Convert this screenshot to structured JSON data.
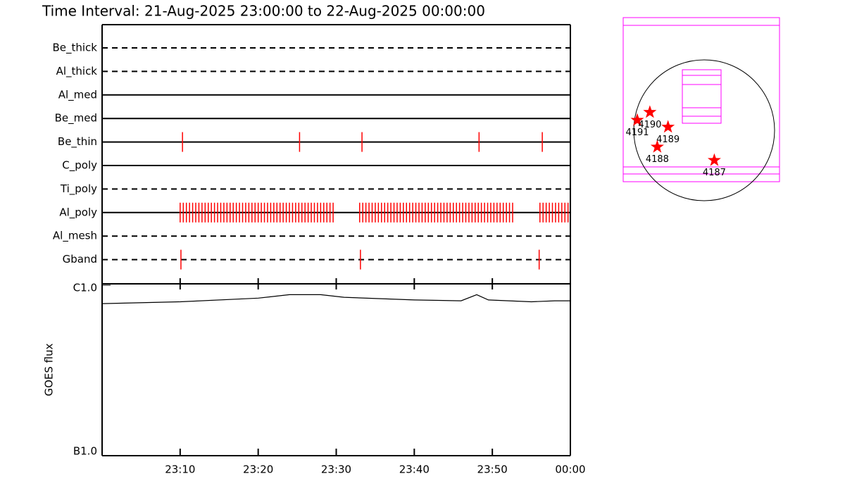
{
  "chart_data": [
    {
      "type": "timeline",
      "title": "Time Interval: 21-Aug-2025 23:00:00 to 22-Aug-2025 00:00:00",
      "xlim": [
        0,
        60
      ],
      "series": [
        {
          "name": "Be_thick",
          "dashed": true,
          "color": "#ff0000",
          "x": []
        },
        {
          "name": "Al_thick",
          "dashed": true,
          "color": "#ff0000",
          "x": []
        },
        {
          "name": "Al_med",
          "dashed": false,
          "color": "#ff0000",
          "x": []
        },
        {
          "name": "Be_med",
          "dashed": false,
          "color": "#ff0000",
          "x": []
        },
        {
          "name": "Be_thin",
          "dashed": false,
          "color": "#ff0000",
          "x": [
            10.3,
            25.3,
            33.3,
            48.3,
            56.4
          ]
        },
        {
          "name": "C_poly",
          "dashed": false,
          "color": "#ff0000",
          "x": []
        },
        {
          "name": "Ti_poly",
          "dashed": true,
          "color": "#ff0000",
          "x": []
        },
        {
          "name": "Al_poly",
          "dashed": false,
          "color": "#ff0000",
          "x": [
            10.0,
            10.4,
            10.8,
            11.2,
            11.6,
            12.0,
            12.4,
            12.8,
            13.2,
            13.6,
            14.0,
            14.4,
            14.8,
            15.2,
            15.6,
            16.0,
            16.4,
            16.8,
            17.2,
            17.6,
            18.0,
            18.4,
            18.8,
            19.2,
            19.6,
            20.0,
            20.4,
            20.8,
            21.2,
            21.6,
            22.0,
            22.4,
            22.8,
            23.2,
            23.6,
            24.0,
            24.4,
            24.8,
            25.2,
            25.6,
            26.0,
            26.4,
            26.8,
            27.2,
            27.6,
            28.0,
            28.4,
            28.8,
            29.2,
            29.6,
            33.0,
            33.4,
            33.8,
            34.2,
            34.6,
            35.0,
            35.4,
            35.8,
            36.2,
            36.6,
            37.0,
            37.4,
            37.8,
            38.2,
            38.6,
            39.0,
            39.4,
            39.8,
            40.2,
            40.6,
            41.0,
            41.4,
            41.8,
            42.2,
            42.6,
            43.0,
            43.4,
            43.8,
            44.2,
            44.6,
            45.0,
            45.4,
            45.8,
            46.2,
            46.6,
            47.0,
            47.4,
            47.8,
            48.2,
            48.6,
            49.0,
            49.4,
            49.8,
            50.2,
            50.6,
            51.0,
            51.4,
            51.8,
            52.2,
            52.6,
            56.1,
            56.5,
            56.9,
            57.3,
            57.7,
            58.1,
            58.5,
            58.9,
            59.3,
            59.7
          ]
        },
        {
          "name": "Al_mesh",
          "dashed": true,
          "color": "#ff0000",
          "x": []
        },
        {
          "name": "Gband",
          "dashed": true,
          "color": "#ff0000",
          "x": [
            10.1,
            33.1,
            56.0
          ]
        }
      ]
    },
    {
      "type": "line",
      "ylabel": "GOES flux",
      "log": true,
      "color": "#000000",
      "xlim": [
        0,
        60
      ],
      "xticks": [
        {
          "value": 10,
          "label": "23:10"
        },
        {
          "value": 20,
          "label": "23:20"
        },
        {
          "value": 30,
          "label": "23:30"
        },
        {
          "value": 40,
          "label": "23:40"
        },
        {
          "value": 50,
          "label": "23:50"
        },
        {
          "value": 60,
          "label": "00:00"
        }
      ],
      "ylim": [
        1e-07,
        1e-06
      ],
      "yticks": [
        {
          "value": 1e-07,
          "label": "B1.0"
        },
        {
          "value": 1e-06,
          "label": "C1.0"
        }
      ],
      "x": [
        0,
        10,
        20,
        24,
        28,
        31,
        40,
        46,
        48,
        49.5,
        55,
        58,
        60
      ],
      "values": [
        7.8e-07,
        8e-07,
        8.4e-07,
        8.8e-07,
        8.8e-07,
        8.5e-07,
        8.2e-07,
        8.1e-07,
        8.8e-07,
        8.2e-07,
        8e-07,
        8.1e-07,
        8.1e-07
      ]
    },
    {
      "type": "map",
      "color": "#ff0000",
      "xlim": [
        -1090,
        1020
      ],
      "ylim": [
        -700,
        1520
      ],
      "labels": [
        "4191",
        "4190",
        "4189",
        "4188",
        "4187"
      ],
      "x": [
        -900,
        -730,
        -485,
        -630,
        140
      ],
      "y": [
        133,
        240,
        40,
        -230,
        -410
      ]
    }
  ]
}
